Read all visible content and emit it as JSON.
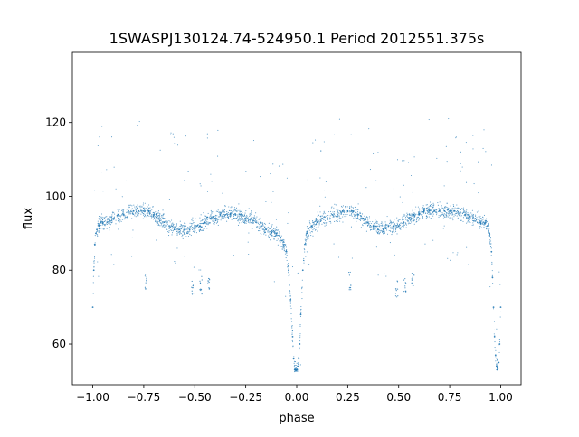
{
  "chart_data": {
    "type": "scatter",
    "title": "1SWASPJ130124.74-524950.1 Period 2012551.375s",
    "xlabel": "phase",
    "ylabel": "flux",
    "xlim": [
      -1.1,
      1.1
    ],
    "ylim": [
      49,
      139
    ],
    "xticks": [
      {
        "value": -1.0,
        "label": "−1.00"
      },
      {
        "value": -0.75,
        "label": "−0.75"
      },
      {
        "value": -0.5,
        "label": "−0.50"
      },
      {
        "value": -0.25,
        "label": "−0.25"
      },
      {
        "value": 0.0,
        "label": "0.00"
      },
      {
        "value": 0.25,
        "label": "0.25"
      },
      {
        "value": 0.5,
        "label": "0.50"
      },
      {
        "value": 0.75,
        "label": "0.75"
      },
      {
        "value": 1.0,
        "label": "1.00"
      }
    ],
    "yticks": [
      {
        "value": 60,
        "label": "60"
      },
      {
        "value": 80,
        "label": "80"
      },
      {
        "value": 100,
        "label": "100"
      },
      {
        "value": 120,
        "label": "120"
      }
    ],
    "grid": false,
    "legend": "none",
    "point_color": "#1f77b4",
    "series": [
      {
        "x": [
          -1.0,
          -0.995,
          -0.99,
          -0.985,
          -0.98,
          -0.97,
          -0.96,
          -0.95,
          -0.93,
          -0.9,
          -0.875,
          -0.85,
          -0.825,
          -0.8,
          -0.775,
          -0.75,
          -0.725,
          -0.7,
          -0.675,
          -0.65,
          -0.625,
          -0.6,
          -0.575,
          -0.55,
          -0.525,
          -0.5,
          -0.475,
          -0.45,
          -0.425,
          -0.4,
          -0.375,
          -0.35,
          -0.325,
          -0.3,
          -0.275,
          -0.25,
          -0.225,
          -0.2,
          -0.175,
          -0.15,
          -0.125,
          -0.1,
          -0.075,
          -0.05,
          -0.04,
          -0.03,
          -0.02,
          -0.015,
          -0.01,
          -0.005,
          0.0,
          0.005,
          0.01,
          0.015,
          0.02,
          0.03,
          0.04,
          0.05,
          0.075,
          0.1,
          0.125,
          0.15,
          0.175,
          0.2,
          0.225,
          0.25,
          0.275,
          0.3,
          0.325,
          0.35,
          0.375,
          0.4,
          0.425,
          0.45,
          0.475,
          0.5,
          0.525,
          0.55,
          0.575,
          0.6,
          0.625,
          0.65,
          0.675,
          0.7,
          0.725,
          0.75,
          0.775,
          0.8,
          0.825,
          0.85,
          0.875,
          0.9,
          0.925,
          0.935,
          0.945,
          0.955,
          0.96,
          0.965,
          0.97,
          0.975,
          0.98,
          0.985,
          0.99,
          0.995,
          1.0
        ],
        "y": [
          70,
          80,
          87,
          90,
          91,
          92,
          93,
          93,
          93,
          94,
          95,
          95,
          96,
          96,
          96,
          96,
          96,
          95,
          94,
          93,
          92,
          91,
          91,
          91,
          91,
          92,
          92,
          93,
          94,
          94,
          95,
          95,
          95,
          95,
          95,
          94,
          94,
          93,
          92,
          91,
          90,
          90,
          88,
          85,
          80,
          72,
          62,
          56,
          53,
          53,
          53,
          54,
          56,
          60,
          68,
          80,
          87,
          90,
          92,
          93,
          94,
          94,
          95,
          95,
          96,
          96,
          96,
          95,
          94,
          93,
          92,
          91,
          91,
          92,
          92,
          92,
          93,
          94,
          95,
          95,
          96,
          96,
          96,
          96,
          96,
          96,
          96,
          95,
          95,
          94,
          94,
          93,
          93,
          92,
          90,
          85,
          78,
          70,
          62,
          57,
          54,
          53,
          55,
          60,
          70
        ]
      }
    ],
    "annotations": [
      {
        "x": -0.51,
        "y": 75
      },
      {
        "x": -0.47,
        "y": 76
      },
      {
        "x": -0.43,
        "y": 77
      },
      {
        "x": -0.74,
        "y": 77
      },
      {
        "x": 0.26,
        "y": 77
      },
      {
        "x": 0.49,
        "y": 75
      },
      {
        "x": 0.53,
        "y": 76
      },
      {
        "x": 0.57,
        "y": 77
      }
    ]
  }
}
